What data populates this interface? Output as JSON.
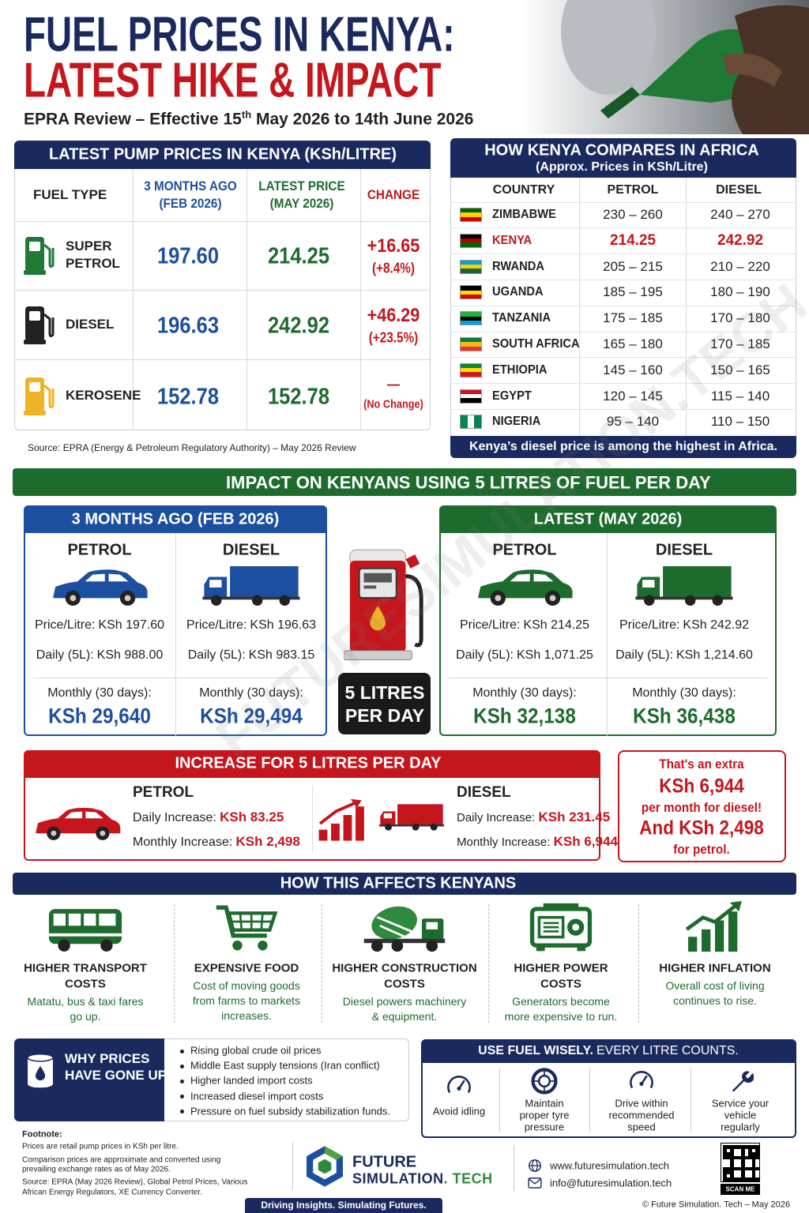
{
  "header": {
    "title_line1": "FUEL PRICES IN KENYA:",
    "title_line2": "LATEST HIKE & IMPACT",
    "subtitle": {
      "before": "EPRA Review – Effective 15",
      "sup": "th",
      "after": " May 2026 to 14th June 2026"
    }
  },
  "pump_prices": {
    "title": "LATEST PUMP PRICES IN KENYA (KSh/LITRE)",
    "columns": [
      [
        "FUEL TYPE"
      ],
      [
        "3 MONTHS AGO",
        "(FEB 2026)"
      ],
      [
        "LATEST PRICE",
        "(MAY 2026)"
      ],
      [
        "CHANGE"
      ]
    ],
    "rows": [
      {
        "fuel": [
          "SUPER",
          "PETROL"
        ],
        "before": "197.60",
        "latest": "214.25",
        "change": "+16.65",
        "change_pct": "(+8.4%)"
      },
      {
        "fuel": [
          "DIESEL"
        ],
        "before": "196.63",
        "latest": "242.92",
        "change": "+46.29",
        "change_pct": "(+23.5%)"
      },
      {
        "fuel": [
          "KEROSENE"
        ],
        "before": "152.78",
        "latest": "152.78",
        "change": "—",
        "change_pct": "(No Change)"
      }
    ],
    "source": "Source: EPRA (Energy & Petroleum Regulatory Authority) – May 2026 Review"
  },
  "comparison": {
    "title": "HOW KENYA COMPARES IN AFRICA",
    "subtitle": "(Approx. Prices in KSh/Litre)",
    "columns": [
      "COUNTRY",
      "PETROL",
      "DIESEL"
    ],
    "rows": [
      [
        "ZIMBABWE",
        "230 – 260",
        "240 – 270"
      ],
      [
        "KENYA",
        "214.25",
        "242.92"
      ],
      [
        "RWANDA",
        "205 – 215",
        "210 – 220"
      ],
      [
        "UGANDA",
        "185 – 195",
        "180 – 190"
      ],
      [
        "TANZANIA",
        "175 – 185",
        "170 – 180"
      ],
      [
        "SOUTH AFRICA",
        "165 – 180",
        "170 – 185"
      ],
      [
        "ETHIOPIA",
        "145 – 160",
        "150 – 165"
      ],
      [
        "EGYPT",
        "120 – 145",
        "115 – 140"
      ],
      [
        "NIGERIA",
        "95 – 140",
        "110 – 150"
      ]
    ],
    "note": "Kenya’s diesel price is among the highest in Africa."
  },
  "impact": {
    "title": "IMPACT ON KENYANS USING 5 LITRES OF FUEL PER DAY",
    "before": {
      "title": "3 MONTHS AGO (FEB 2026)",
      "items": [
        {
          "fuel": "PETROL",
          "price_label": "Price/Litre:",
          "price": "KSh 197.60",
          "daily_label": "Daily (5L):",
          "daily": "KSh 988.00",
          "monthly_label": "Monthly (30 days):",
          "monthly": "KSh 29,640"
        },
        {
          "fuel": "DIESEL",
          "price_label": "Price/Litre:",
          "price": "KSh 196.63",
          "daily_label": "Daily (5L):",
          "daily": "KSh 983.15",
          "monthly_label": "Monthly (30 days):",
          "monthly": "KSh 29,494"
        }
      ]
    },
    "latest": {
      "title": "LATEST (MAY 2026)",
      "items": [
        {
          "fuel": "PETROL",
          "price_label": "Price/Litre:",
          "price": "KSh 214.25",
          "daily_label": "Daily (5L):",
          "daily": "KSh 1,071.25",
          "monthly_label": "Monthly (30 days):",
          "monthly": "KSh 32,138"
        },
        {
          "fuel": "DIESEL",
          "price_label": "Price/Litre:",
          "price": "KSh 242.92",
          "daily_label": "Daily (5L):",
          "daily": "KSh 1,214.60",
          "monthly_label": "Monthly (30 days):",
          "monthly": "KSh 36,438"
        }
      ]
    },
    "badge": [
      "5 LITRES",
      "PER DAY"
    ]
  },
  "increase": {
    "title": "INCREASE FOR 5 LITRES PER DAY",
    "items": [
      {
        "fuel": "PETROL",
        "daily_label": "Daily Increase:",
        "daily": "KSh 83.25",
        "monthly_label": "Monthly Increase:",
        "monthly": "KSh 2,498"
      },
      {
        "fuel": "DIESEL",
        "daily_label": "Daily Increase:",
        "daily": "KSh 231.45",
        "monthly_label": "Monthly Increase:",
        "monthly": "KSh 6,944"
      }
    ],
    "extra": [
      "That's an extra",
      "KSh 6,944",
      "per month for diesel!",
      "And KSh 2,498",
      "for petrol."
    ]
  },
  "effects": {
    "title": "HOW THIS AFFECTS KENYANS",
    "items": [
      {
        "title": [
          "HIGHER TRANSPORT",
          "COSTS"
        ],
        "desc": [
          "Matatu, bus & taxi fares",
          "go up."
        ]
      },
      {
        "title": [
          "EXPENSIVE FOOD"
        ],
        "desc": [
          "Cost of moving goods",
          "from farms to markets",
          "increases."
        ]
      },
      {
        "title": [
          "HIGHER CONSTRUCTION",
          "COSTS"
        ],
        "desc": [
          "Diesel powers machinery",
          "& equipment."
        ]
      },
      {
        "title": [
          "HIGHER POWER",
          "COSTS"
        ],
        "desc": [
          "Generators become",
          "more expensive to run."
        ]
      },
      {
        "title": [
          "HIGHER INFLATION"
        ],
        "desc": [
          "Overall cost of living",
          "continues to rise."
        ]
      }
    ]
  },
  "why": {
    "title": [
      "WHY PRICES",
      "HAVE GONE UP"
    ],
    "reasons": [
      "Rising global crude oil prices",
      "Middle East supply tensions (Iran conflict)",
      "Higher landed import costs",
      "Increased diesel import costs",
      "Pressure on fuel subsidy stabilization funds."
    ]
  },
  "wisely": {
    "title": "USE FUEL WISELY.",
    "title2": "EVERY LITRE COUNTS.",
    "tips": [
      [
        "Avoid idling"
      ],
      [
        "Maintain",
        "proper tyre",
        "pressure"
      ],
      [
        "Drive within",
        "recommended",
        "speed"
      ],
      [
        "Service your",
        "vehicle",
        "regularly"
      ]
    ]
  },
  "footnote": {
    "label": "Footnote:",
    "lines": [
      "Prices are retail pump prices in KSh per litre.",
      "Comparison prices are approximate and converted using",
      "prevailing exchange rates as of May 2026.",
      "Source: EPRA (May 2026 Review), Global Petrol Prices, Various",
      "African Energy Regulators, XE Currency Converter."
    ]
  },
  "brand": {
    "name": "FUTURE",
    "name2": [
      "SIMULATION",
      ". TECH"
    ],
    "tagline": "Driving Insights. Simulating Futures.",
    "website": "www.futuresimulation.tech",
    "email": "info@futuresimulation.tech",
    "qr": "SCAN ME",
    "copyright": "© Future Simulation. Tech – May 2026"
  },
  "watermark": "FUTURESIMULATION.TECH"
}
